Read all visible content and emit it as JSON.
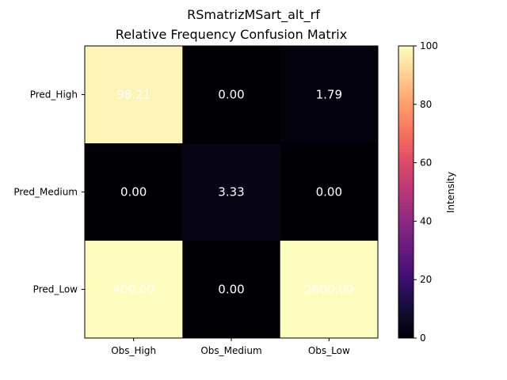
{
  "chart_data": {
    "type": "heatmap",
    "title": "RSmatrizMSart_alt_rf",
    "subtitle": "Relative Frequency Confusion Matrix",
    "x_categories": [
      "Obs_High",
      "Obs_Medium",
      "Obs_Low"
    ],
    "y_categories": [
      "Pred_High",
      "Pred_Medium",
      "Pred_Low"
    ],
    "values": [
      [
        98.21,
        0.0,
        1.79
      ],
      [
        0.0,
        3.33,
        0.0
      ],
      [
        400.0,
        0.0,
        2600.0
      ]
    ],
    "cell_labels": [
      [
        "98.21",
        "0.00",
        "1.79"
      ],
      [
        "0.00",
        "3.33",
        "0.00"
      ],
      [
        "400.00",
        "0.00",
        "2600.00"
      ]
    ],
    "colormap": "magma",
    "colorbar": {
      "label": "Intensity",
      "range": [
        0,
        100
      ],
      "ticks": [
        "0",
        "20",
        "40",
        "60",
        "80",
        "100"
      ]
    },
    "cell_text_color": "#ffffff"
  }
}
